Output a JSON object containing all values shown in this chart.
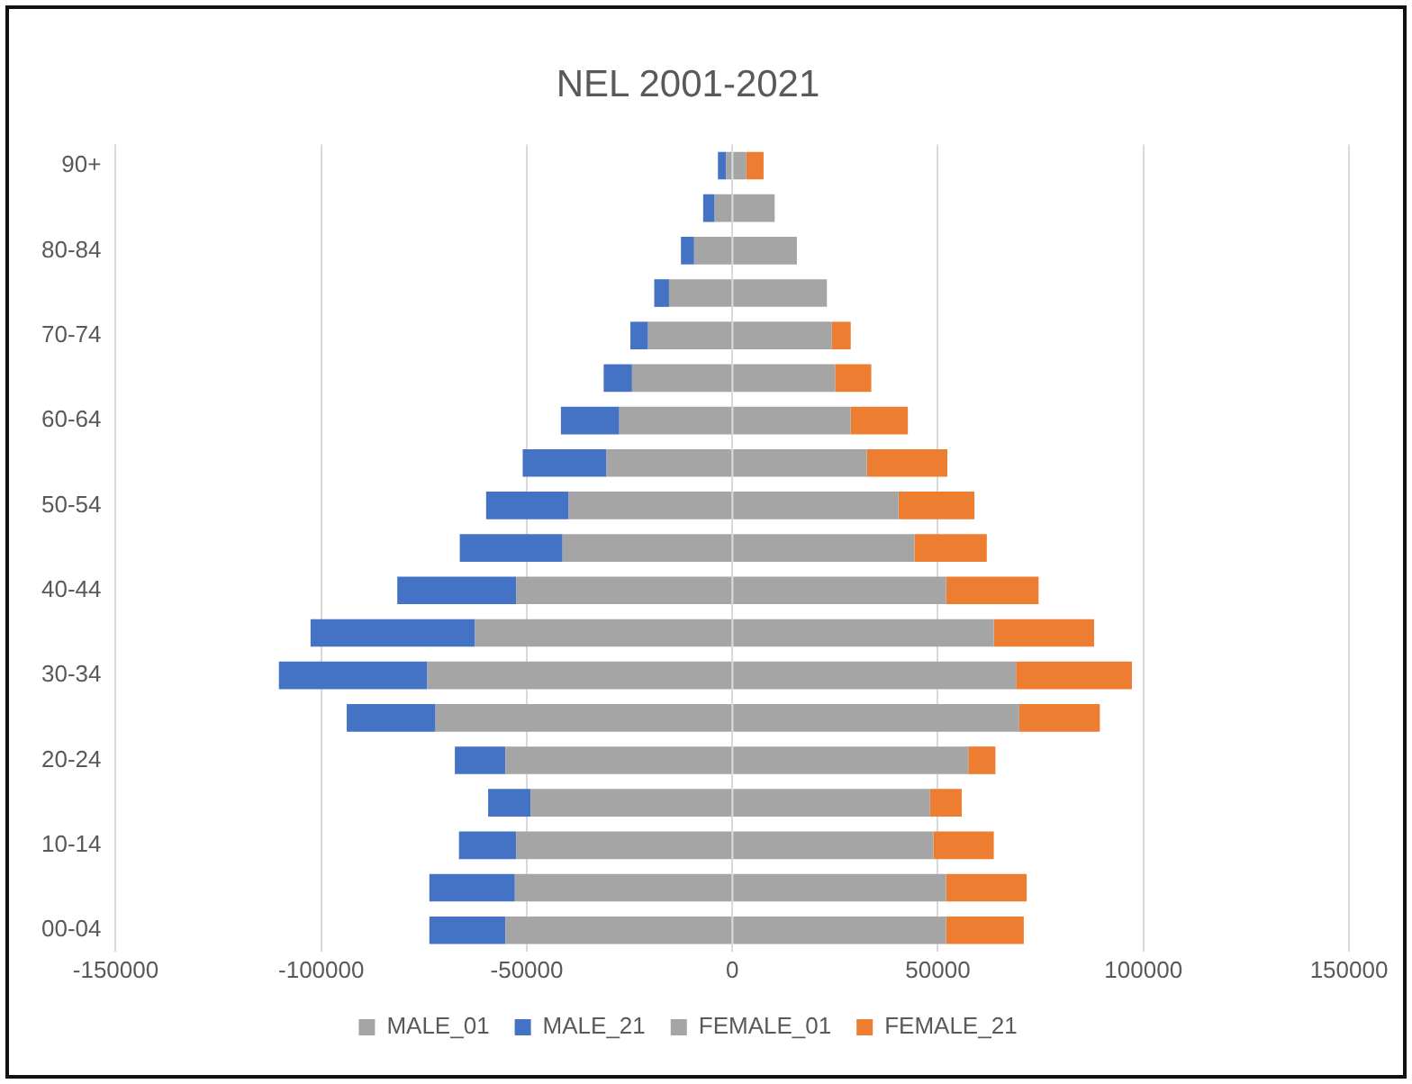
{
  "chart_data": {
    "type": "bar",
    "orientation": "horizontal",
    "stacked": true,
    "title": "NEL 2001-2021",
    "categories": [
      "90+",
      null,
      "80-84",
      null,
      "70-74",
      null,
      "60-64",
      null,
      "50-54",
      null,
      "40-44",
      null,
      "30-34",
      null,
      "20-24",
      null,
      "10-14",
      null,
      "00-04"
    ],
    "series": [
      {
        "name": "MALE_01",
        "color": "#a5a5a5",
        "values": [
          -1500,
          -4300,
          -9300,
          -15400,
          -20500,
          -24400,
          -27500,
          -30600,
          -39800,
          -41300,
          -52600,
          -62600,
          -74200,
          -72200,
          -55200,
          -49100,
          -52600,
          -52900,
          -55200
        ]
      },
      {
        "name": "MALE_21",
        "color": "#4472c4",
        "values": [
          -2000,
          -2800,
          -3200,
          -3600,
          -4300,
          -6900,
          -14200,
          -20400,
          -20100,
          -25000,
          -28900,
          -40000,
          -36100,
          -21600,
          -12300,
          -10300,
          -13900,
          -20800,
          -18500
        ]
      },
      {
        "name": "FEMALE_01",
        "color": "#a5a5a5",
        "values": [
          3400,
          10300,
          15700,
          23000,
          24200,
          25000,
          28800,
          32700,
          40400,
          44300,
          52000,
          63600,
          69000,
          69800,
          57400,
          48100,
          48900,
          52000,
          52000
        ]
      },
      {
        "name": "FEMALE_21",
        "color": "#ed7d31",
        "values": [
          4200,
          0,
          0,
          0,
          4600,
          8800,
          13900,
          19600,
          18500,
          17600,
          22500,
          24400,
          28200,
          19600,
          6600,
          7700,
          14700,
          19600,
          18900
        ]
      }
    ],
    "xlim": [
      -150000,
      150000
    ],
    "xticks": [
      -150000,
      -100000,
      -50000,
      0,
      50000,
      100000,
      150000
    ],
    "grid": "x",
    "legend": "bottom"
  }
}
